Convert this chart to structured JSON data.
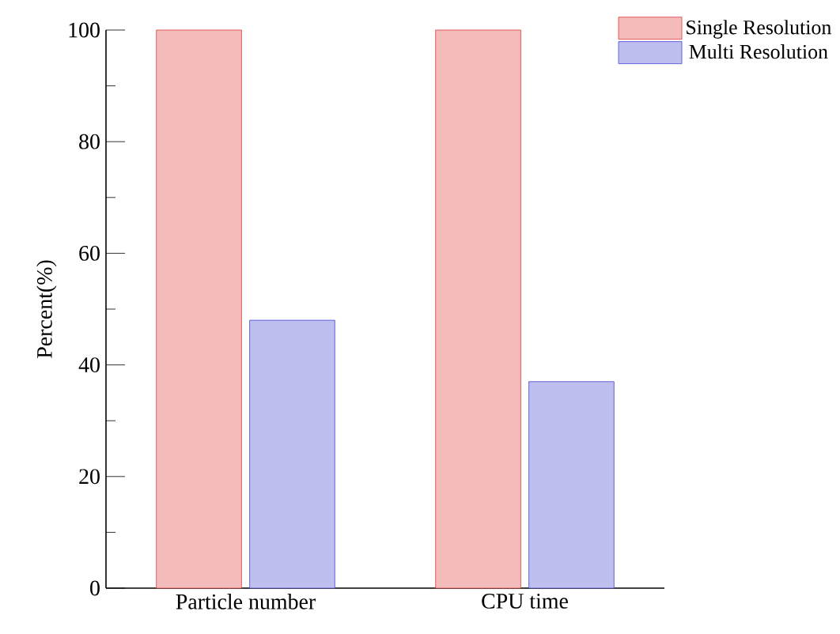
{
  "chart_data": {
    "type": "bar",
    "ylabel": "Percent(%)",
    "categories": [
      "Particle number",
      "CPU time"
    ],
    "series": [
      {
        "name": "Single Resolution",
        "color": "#e03c3c",
        "values": [
          100,
          100
        ]
      },
      {
        "name": "Multi Resolution",
        "color": "#4646d2",
        "values": [
          48,
          37
        ]
      }
    ],
    "ylim": [
      0,
      100
    ],
    "yticks": [
      0,
      {
        "value": 10,
        "label": null
      },
      20,
      {
        "value": 30,
        "label": null
      },
      40,
      {
        "value": 50,
        "label": null
      },
      60,
      {
        "value": 70,
        "label": null
      },
      80,
      {
        "value": 90,
        "label": null
      },
      100
    ],
    "legend": "top right"
  }
}
